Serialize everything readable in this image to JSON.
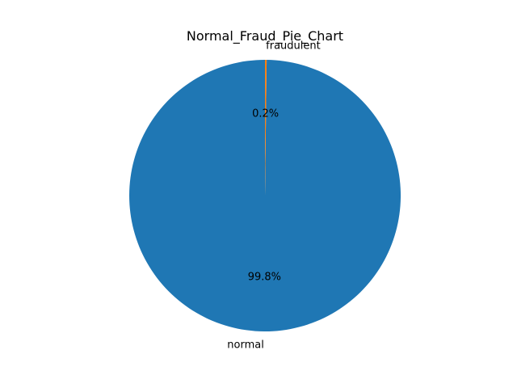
{
  "chart_data": {
    "type": "pie",
    "title": "Normal_Fraud_Pie_Chart",
    "slices": [
      {
        "label": "normal",
        "value": 99.8,
        "pct_text": "99.8%",
        "color": "#1f77b4"
      },
      {
        "label": "fraudulent",
        "value": 0.2,
        "pct_text": "0.2%",
        "color": "#ff7f0e"
      }
    ],
    "start_angle_deg": 90,
    "direction": "counterclockwise"
  }
}
